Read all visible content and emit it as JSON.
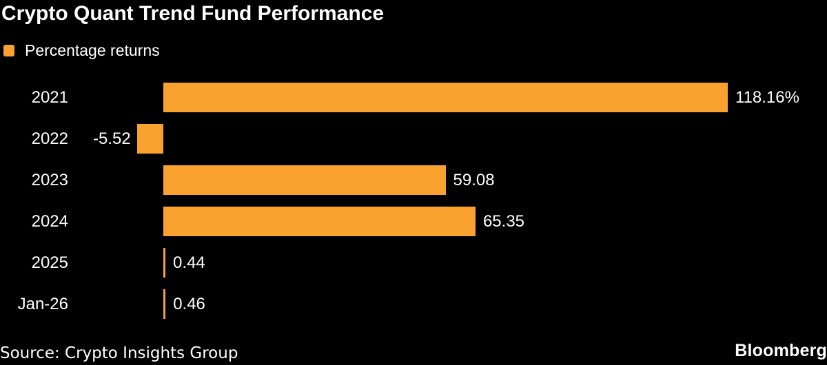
{
  "colors": {
    "background": "#000000",
    "bar": "#FAA22F",
    "text": "#FFFFFF"
  },
  "header": {
    "title": "Crypto Quant Trend Fund Performance"
  },
  "legend": {
    "label": "Percentage returns",
    "swatch_color": "#FAA22F"
  },
  "chart_data": {
    "type": "bar",
    "orientation": "horizontal",
    "title": "Crypto Quant Trend Fund Performance",
    "legend_entries": [
      "Percentage returns"
    ],
    "legend_position": "top-left",
    "grid": false,
    "axes_hidden": true,
    "xlabel": "",
    "ylabel": "",
    "categories": [
      "2021",
      "2022",
      "2023",
      "2024",
      "2025",
      "Jan-26"
    ],
    "values": [
      118.16,
      -5.52,
      59.08,
      65.35,
      0.44,
      0.46
    ],
    "value_labels": [
      "118.16%",
      "-5.52",
      "59.08",
      "65.35",
      "0.44",
      "0.46"
    ]
  },
  "footer": {
    "source": "Source: Crypto Insights Group",
    "brand": "Bloomberg"
  }
}
